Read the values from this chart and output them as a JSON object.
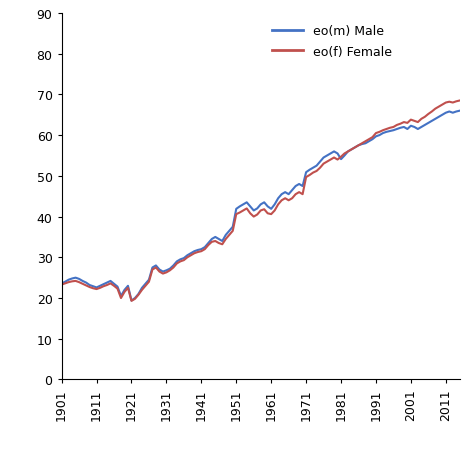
{
  "male_color": "#4472C4",
  "female_color": "#C0504D",
  "bg_color": "#FFFFFF",
  "xlim": [
    1901,
    2015
  ],
  "ylim": [
    0,
    90
  ],
  "yticks": [
    0,
    10,
    20,
    30,
    40,
    50,
    60,
    70,
    80,
    90
  ],
  "xticks": [
    1901,
    1911,
    1921,
    1931,
    1941,
    1951,
    1961,
    1971,
    1981,
    1991,
    2001,
    2011
  ],
  "years_male": [
    1901,
    1902,
    1903,
    1904,
    1905,
    1906,
    1907,
    1908,
    1909,
    1910,
    1911,
    1912,
    1913,
    1914,
    1915,
    1916,
    1917,
    1918,
    1919,
    1920,
    1921,
    1922,
    1923,
    1924,
    1925,
    1926,
    1927,
    1928,
    1929,
    1930,
    1931,
    1932,
    1933,
    1934,
    1935,
    1936,
    1937,
    1938,
    1939,
    1940,
    1941,
    1942,
    1943,
    1944,
    1945,
    1946,
    1947,
    1948,
    1949,
    1950,
    1951,
    1952,
    1953,
    1954,
    1955,
    1956,
    1957,
    1958,
    1959,
    1960,
    1961,
    1962,
    1963,
    1964,
    1965,
    1966,
    1967,
    1968,
    1969,
    1970,
    1971,
    1972,
    1973,
    1974,
    1975,
    1976,
    1977,
    1978,
    1979,
    1980,
    1981,
    1982,
    1983,
    1984,
    1985,
    1986,
    1987,
    1988,
    1989,
    1990,
    1991,
    1992,
    1993,
    1994,
    1995,
    1996,
    1997,
    1998,
    1999,
    2000,
    2001,
    2002,
    2003,
    2004,
    2005,
    2006,
    2007,
    2008,
    2009,
    2010,
    2011,
    2012,
    2013,
    2014,
    2015
  ],
  "values_male": [
    23.6,
    24.0,
    24.5,
    24.8,
    25.0,
    24.7,
    24.2,
    23.8,
    23.2,
    22.9,
    22.6,
    23.0,
    23.4,
    23.8,
    24.2,
    23.5,
    22.8,
    20.5,
    22.0,
    23.0,
    19.4,
    20.0,
    21.0,
    22.5,
    23.5,
    24.5,
    27.5,
    28.0,
    27.0,
    26.5,
    26.8,
    27.2,
    28.0,
    29.0,
    29.5,
    29.8,
    30.5,
    31.0,
    31.5,
    31.8,
    32.0,
    32.5,
    33.5,
    34.5,
    35.0,
    34.5,
    34.0,
    35.5,
    36.5,
    37.5,
    41.9,
    42.5,
    43.0,
    43.5,
    42.5,
    41.5,
    42.0,
    43.0,
    43.5,
    42.5,
    41.9,
    43.0,
    44.5,
    45.5,
    46.0,
    45.5,
    46.5,
    47.5,
    48.0,
    47.5,
    50.9,
    51.5,
    52.0,
    52.5,
    53.5,
    54.5,
    55.0,
    55.5,
    56.0,
    55.5,
    54.1,
    55.0,
    56.0,
    56.5,
    57.0,
    57.5,
    57.8,
    58.0,
    58.5,
    59.0,
    59.7,
    60.0,
    60.5,
    60.8,
    61.0,
    61.2,
    61.5,
    61.8,
    62.0,
    61.5,
    62.3,
    62.0,
    61.5,
    62.0,
    62.5,
    63.0,
    63.5,
    64.0,
    64.5,
    65.0,
    65.5,
    65.8,
    65.5,
    65.8,
    66.0
  ],
  "years_female": [
    1901,
    1902,
    1903,
    1904,
    1905,
    1906,
    1907,
    1908,
    1909,
    1910,
    1911,
    1912,
    1913,
    1914,
    1915,
    1916,
    1917,
    1918,
    1919,
    1920,
    1921,
    1922,
    1923,
    1924,
    1925,
    1926,
    1927,
    1928,
    1929,
    1930,
    1931,
    1932,
    1933,
    1934,
    1935,
    1936,
    1937,
    1938,
    1939,
    1940,
    1941,
    1942,
    1943,
    1944,
    1945,
    1946,
    1947,
    1948,
    1949,
    1950,
    1951,
    1952,
    1953,
    1954,
    1955,
    1956,
    1957,
    1958,
    1959,
    1960,
    1961,
    1962,
    1963,
    1964,
    1965,
    1966,
    1967,
    1968,
    1969,
    1970,
    1971,
    1972,
    1973,
    1974,
    1975,
    1976,
    1977,
    1978,
    1979,
    1980,
    1981,
    1982,
    1983,
    1984,
    1985,
    1986,
    1987,
    1988,
    1989,
    1990,
    1991,
    1992,
    1993,
    1994,
    1995,
    1996,
    1997,
    1998,
    1999,
    2000,
    2001,
    2002,
    2003,
    2004,
    2005,
    2006,
    2007,
    2008,
    2009,
    2010,
    2011,
    2012,
    2013,
    2014,
    2015
  ],
  "values_female": [
    23.3,
    23.6,
    23.9,
    24.1,
    24.2,
    23.9,
    23.5,
    23.1,
    22.7,
    22.4,
    22.2,
    22.5,
    22.9,
    23.2,
    23.6,
    23.0,
    22.3,
    20.0,
    21.5,
    22.5,
    19.3,
    19.8,
    20.8,
    22.0,
    23.0,
    24.0,
    27.0,
    27.5,
    26.5,
    26.0,
    26.3,
    26.8,
    27.5,
    28.5,
    29.0,
    29.3,
    30.0,
    30.5,
    31.0,
    31.3,
    31.5,
    32.0,
    33.0,
    33.8,
    34.0,
    33.5,
    33.2,
    34.5,
    35.5,
    36.5,
    40.6,
    41.0,
    41.5,
    42.0,
    40.8,
    40.0,
    40.5,
    41.5,
    41.8,
    40.8,
    40.6,
    41.5,
    43.0,
    44.0,
    44.5,
    44.0,
    44.5,
    45.5,
    46.0,
    45.5,
    49.7,
    50.2,
    50.8,
    51.2,
    52.0,
    53.0,
    53.5,
    54.0,
    54.5,
    54.0,
    54.7,
    55.5,
    56.0,
    56.5,
    57.0,
    57.5,
    58.0,
    58.5,
    59.0,
    59.5,
    60.5,
    60.8,
    61.2,
    61.5,
    61.8,
    62.0,
    62.5,
    62.8,
    63.2,
    63.0,
    63.8,
    63.5,
    63.2,
    64.0,
    64.5,
    65.2,
    65.8,
    66.5,
    67.0,
    67.5,
    68.0,
    68.2,
    68.0,
    68.3,
    68.5
  ],
  "legend_male_label": "eo(m)",
  "legend_male_sublabel": " Male",
  "legend_female_label": "eo(f)",
  "legend_female_sublabel": " Female",
  "linewidth": 1.5,
  "tick_fontsize": 9,
  "legend_fontsize": 9
}
